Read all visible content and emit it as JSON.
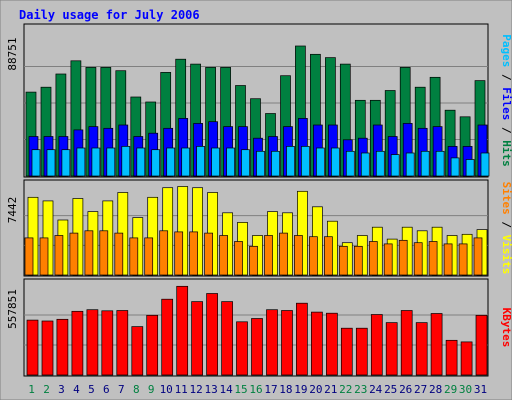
{
  "chart_data": {
    "type": "bar",
    "title": "Daily usage for July 2006",
    "categories": [
      "1",
      "2",
      "3",
      "4",
      "5",
      "6",
      "7",
      "8",
      "9",
      "10",
      "11",
      "12",
      "13",
      "14",
      "15",
      "16",
      "17",
      "18",
      "19",
      "20",
      "21",
      "22",
      "23",
      "24",
      "25",
      "26",
      "27",
      "28",
      "29",
      "30",
      "31"
    ],
    "weekend_days": [
      "1",
      "2",
      "8",
      "9",
      "15",
      "16",
      "22",
      "23",
      "29",
      "30"
    ],
    "panels": [
      {
        "id": "hits",
        "ymax": 88751,
        "ymax_label": "88751",
        "side_label": [
          "Pages",
          "Files",
          "Hits"
        ],
        "series": [
          {
            "name": "Hits",
            "color": "#008040",
            "values": [
              51000,
              54000,
              62000,
              70000,
              66000,
              66000,
              64000,
              48000,
              45000,
              63000,
              71000,
              68000,
              66000,
              66000,
              55000,
              47000,
              38000,
              61000,
              79000,
              74000,
              72000,
              68000,
              46000,
              46000,
              52000,
              66000,
              54000,
              60000,
              40000,
              36000,
              58000
            ]
          },
          {
            "name": "Files",
            "color": "#0000ff",
            "values": [
              24000,
              24000,
              24000,
              28000,
              30000,
              29000,
              31000,
              24000,
              26000,
              29000,
              35000,
              32000,
              33000,
              30000,
              30000,
              23000,
              24000,
              30000,
              35000,
              31000,
              31000,
              22000,
              23000,
              31000,
              24000,
              32000,
              29000,
              30000,
              18000,
              18000,
              31000
            ]
          },
          {
            "name": "Pages",
            "color": "#00bfff",
            "values": [
              16000,
              16000,
              16000,
              17000,
              17000,
              17000,
              18000,
              17000,
              16000,
              17000,
              17000,
              18000,
              17000,
              17000,
              16000,
              15000,
              15000,
              18000,
              18000,
              17000,
              17000,
              15000,
              14000,
              15000,
              13000,
              14000,
              15000,
              15000,
              11000,
              10000,
              14000
            ]
          }
        ]
      },
      {
        "id": "visits",
        "ymax": 7442,
        "ymax_label": "7442",
        "side_label": [
          "Sites",
          "Visits"
        ],
        "series": [
          {
            "name": "Visits",
            "color": "#ffff00",
            "values": [
              6500,
              6200,
              4600,
              6400,
              5300,
              6200,
              6900,
              4800,
              6500,
              7300,
              7400,
              7300,
              6900,
              5200,
              4400,
              3300,
              5300,
              5200,
              7000,
              5700,
              4500,
              2700,
              3300,
              4000,
              3000,
              4000,
              3700,
              4000,
              3300,
              3400,
              3800
            ]
          },
          {
            "name": "Sites",
            "color": "#ff8000",
            "values": [
              3100,
              3100,
              3300,
              3500,
              3700,
              3700,
              3500,
              3100,
              3100,
              3700,
              3600,
              3600,
              3500,
              3300,
              2800,
              2400,
              3300,
              3500,
              3300,
              3200,
              3200,
              2400,
              2400,
              2800,
              2600,
              2900,
              2700,
              2800,
              2600,
              2600,
              3100
            ]
          }
        ]
      },
      {
        "id": "kbytes",
        "ymax": 557851,
        "ymax_label": "557851",
        "side_label": [
          "KBytes"
        ],
        "series": [
          {
            "name": "KBytes",
            "color": "#ff0000",
            "values": [
              340000,
              335000,
              345000,
              395000,
              405000,
              398000,
              400000,
              300000,
              370000,
              470000,
              550000,
              455000,
              505000,
              455000,
              330000,
              350000,
              405000,
              400000,
              445000,
              390000,
              383000,
              290000,
              290000,
              375000,
              325000,
              400000,
              325000,
              381000,
              215000,
              205000,
              370000
            ]
          }
        ]
      }
    ]
  }
}
